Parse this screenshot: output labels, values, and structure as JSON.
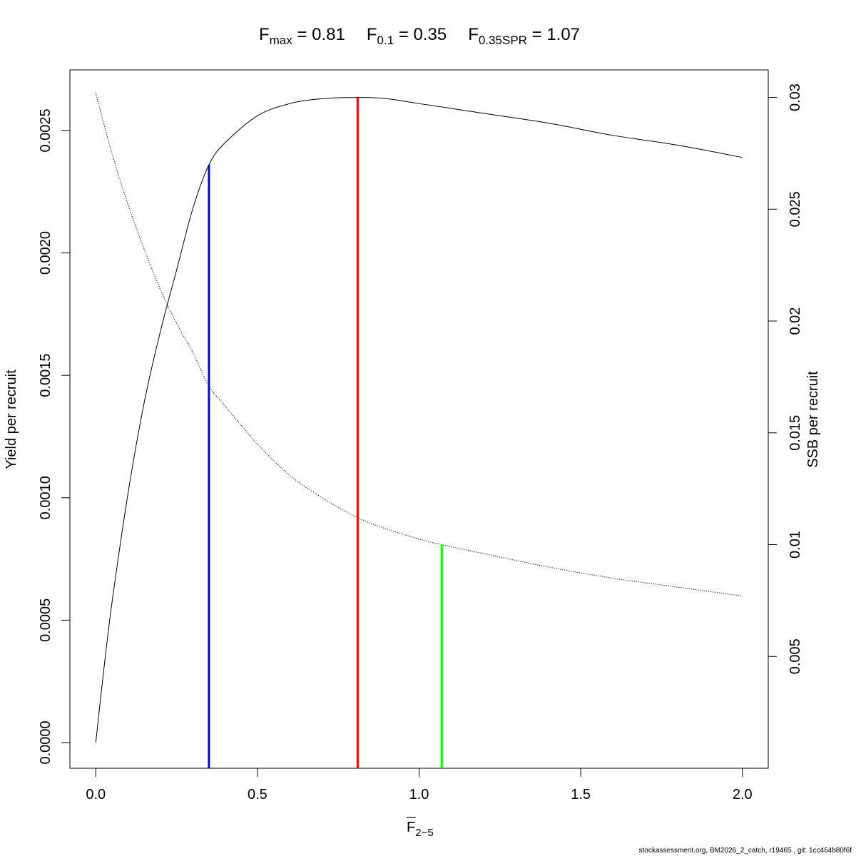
{
  "chart_data": {
    "type": "line",
    "title_parts": [
      {
        "symbol": "F",
        "sub": "max",
        "value": "0.81"
      },
      {
        "symbol": "F",
        "sub": "0.1",
        "value": "0.35"
      },
      {
        "symbol": "F",
        "sub": "0.35SPR",
        "value": "1.07"
      }
    ],
    "equals_sign": "=",
    "xlabel": {
      "symbol": "F",
      "sub": "2−5"
    },
    "ylabel_left": "Yield per recruit",
    "ylabel_right": "SSB per recruit",
    "xlim": [
      -0.08,
      2.08
    ],
    "ylim_left": [
      -0.000105,
      0.0027475
    ],
    "ylim_right": [
      0.0,
      0.03123
    ],
    "x_ticks": [
      0.0,
      0.5,
      1.0,
      1.5,
      2.0
    ],
    "x_tick_labels": [
      "0.0",
      "0.5",
      "1.0",
      "1.5",
      "2.0"
    ],
    "y_left_ticks": [
      0.0,
      0.0005,
      0.001,
      0.0015,
      0.002,
      0.0025
    ],
    "y_left_tick_labels": [
      "0.0000",
      "0.0005",
      "0.0010",
      "0.0015",
      "0.0020",
      "0.0025"
    ],
    "y_right_ticks": [
      0.005,
      0.01,
      0.015,
      0.02,
      0.025,
      0.03
    ],
    "y_right_tick_labels": [
      "0.005",
      "0.01",
      "0.015",
      "0.02",
      "0.025",
      "0.03"
    ],
    "series": [
      {
        "axis": "left",
        "style": "solid",
        "x": [
          0,
          0.025,
          0.05,
          0.1,
          0.15,
          0.2,
          0.25,
          0.3,
          0.35,
          0.4,
          0.5,
          0.6,
          0.7,
          0.81,
          0.9,
          1.0,
          1.2,
          1.4,
          1.6,
          1.8,
          2.0
        ],
        "y": [
          0.0,
          0.0003,
          0.00057,
          0.00102,
          0.00139,
          0.00168,
          0.00193,
          0.00218,
          0.00236,
          0.00245,
          0.00256,
          0.00261,
          0.00263,
          0.002635,
          0.00263,
          0.00261,
          0.00257,
          0.00253,
          0.00248,
          0.00244,
          0.00239
        ]
      },
      {
        "axis": "right",
        "style": "dotted",
        "x": [
          0,
          0.05,
          0.1,
          0.15,
          0.2,
          0.25,
          0.3,
          0.35,
          0.4,
          0.5,
          0.6,
          0.7,
          0.81,
          0.9,
          1.0,
          1.07,
          1.2,
          1.4,
          1.6,
          1.8,
          2.0
        ],
        "y": [
          0.0302,
          0.0275,
          0.0252,
          0.0232,
          0.0214,
          0.0199,
          0.0186,
          0.0171,
          0.0162,
          0.0145,
          0.0131,
          0.0121,
          0.0112,
          0.0107,
          0.01025,
          0.01,
          0.0096,
          0.009,
          0.0085,
          0.0081,
          0.0077
        ]
      }
    ],
    "reference_lines": [
      {
        "x": 0.35,
        "y_top": 0.00236,
        "axis": "left",
        "color": "#0000ff"
      },
      {
        "x": 0.81,
        "y_top": 0.002635,
        "axis": "left",
        "color": "#ff0000"
      },
      {
        "x": 1.07,
        "y_top": 0.01,
        "axis": "right",
        "color": "#00ff00"
      }
    ],
    "grid": false
  },
  "footer": "stockassessment.org, BM2026_2_catch, r19465 , git: 1cc464b80f6f"
}
